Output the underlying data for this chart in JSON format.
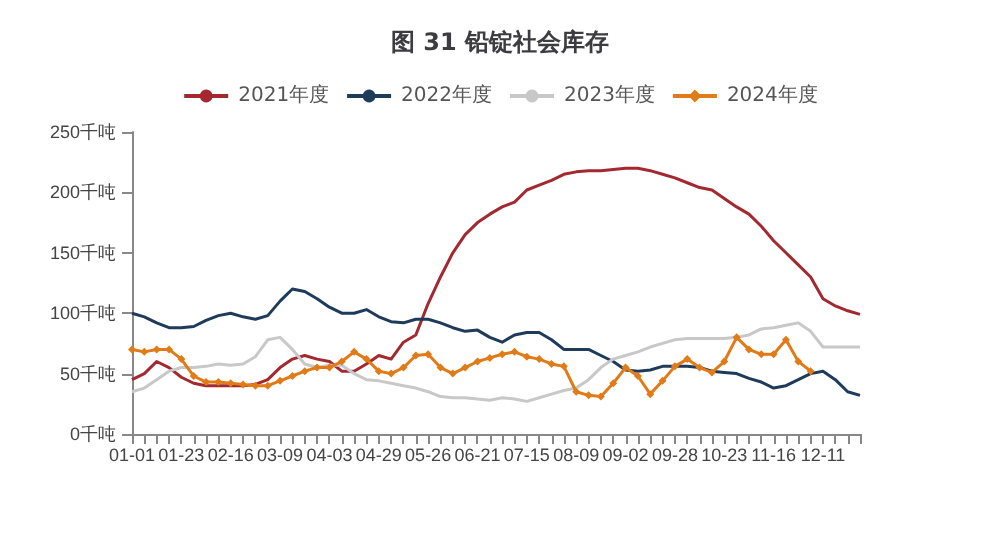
{
  "chart_data": {
    "type": "line",
    "title": "图 31 铅锭社会库存",
    "categories": [
      "01-01",
      null,
      null,
      null,
      "01-23",
      null,
      null,
      null,
      "02-16",
      null,
      null,
      null,
      "03-09",
      null,
      null,
      null,
      "04-03",
      null,
      null,
      null,
      "04-29",
      null,
      null,
      null,
      "05-26",
      null,
      null,
      null,
      "06-21",
      null,
      null,
      null,
      "07-15",
      null,
      null,
      null,
      "08-09",
      null,
      null,
      null,
      "09-02",
      null,
      null,
      null,
      "09-28",
      null,
      null,
      null,
      "10-23",
      null,
      null,
      null,
      "11-16",
      null,
      null,
      null,
      "12-11",
      null,
      null,
      null
    ],
    "series": [
      {
        "name": "2021年度",
        "color": "#a3282f",
        "values": [
          45,
          50,
          60,
          55,
          47,
          42,
          40,
          40,
          40,
          40,
          41,
          45,
          55,
          62,
          65,
          62,
          60,
          52,
          52,
          58,
          65,
          62,
          76,
          82,
          108,
          130,
          150,
          165,
          175,
          182,
          188,
          192,
          202,
          206,
          210,
          215,
          217,
          218,
          218,
          219,
          220,
          220,
          218,
          215,
          212,
          208,
          204,
          202,
          195,
          188,
          182,
          172,
          160,
          150,
          140,
          130,
          112,
          106,
          102,
          99
        ]
      },
      {
        "name": "2022年度",
        "color": "#1f3b5c",
        "values": [
          100,
          97,
          92,
          88,
          88,
          89,
          94,
          98,
          100,
          97,
          95,
          98,
          110,
          120,
          118,
          112,
          105,
          100,
          100,
          103,
          97,
          93,
          92,
          95,
          95,
          92,
          88,
          85,
          86,
          80,
          76,
          82,
          84,
          84,
          78,
          70,
          70,
          70,
          65,
          60,
          53,
          52,
          53,
          56,
          56,
          56,
          55,
          52,
          51,
          50,
          46,
          43,
          38,
          40,
          45,
          50,
          52,
          45,
          35,
          32
        ]
      },
      {
        "name": "2023年度",
        "color": "#c8c8c8",
        "values": [
          35,
          38,
          45,
          52,
          55,
          55,
          56,
          58,
          57,
          58,
          64,
          78,
          80,
          70,
          58,
          55,
          57,
          57,
          50,
          45,
          44,
          42,
          40,
          38,
          35,
          31,
          30,
          30,
          29,
          28,
          30,
          29,
          27,
          30,
          33,
          36,
          38,
          45,
          55,
          62,
          65,
          68,
          72,
          75,
          78,
          79,
          79,
          79,
          79,
          80,
          82,
          87,
          88,
          90,
          92,
          85,
          72,
          72,
          72,
          72
        ]
      },
      {
        "name": "2024年度",
        "color": "#e07b18",
        "marker": "diamond",
        "values": [
          70,
          68,
          70,
          70,
          62,
          48,
          43,
          43,
          42,
          41,
          40,
          40,
          44,
          48,
          52,
          55,
          55,
          60,
          68,
          62,
          52,
          50,
          55,
          65,
          66,
          55,
          50,
          55,
          60,
          63,
          66,
          68,
          64,
          62,
          58,
          56,
          35,
          32,
          31,
          42,
          55,
          48,
          33,
          44,
          56,
          62,
          55,
          51,
          60,
          80,
          70,
          66,
          66,
          78,
          60,
          52,
          null,
          null,
          null,
          null
        ]
      }
    ],
    "ylim": [
      0,
      250
    ],
    "yticks": [
      {
        "value": 0,
        "label": "0千吨"
      },
      {
        "value": 50,
        "label": "50千吨"
      },
      {
        "value": 100,
        "label": "100千吨"
      },
      {
        "value": 150,
        "label": "150千吨"
      },
      {
        "value": 200,
        "label": "200千吨"
      },
      {
        "value": 250,
        "label": "250千吨"
      }
    ],
    "grid": false,
    "legend": "top"
  }
}
